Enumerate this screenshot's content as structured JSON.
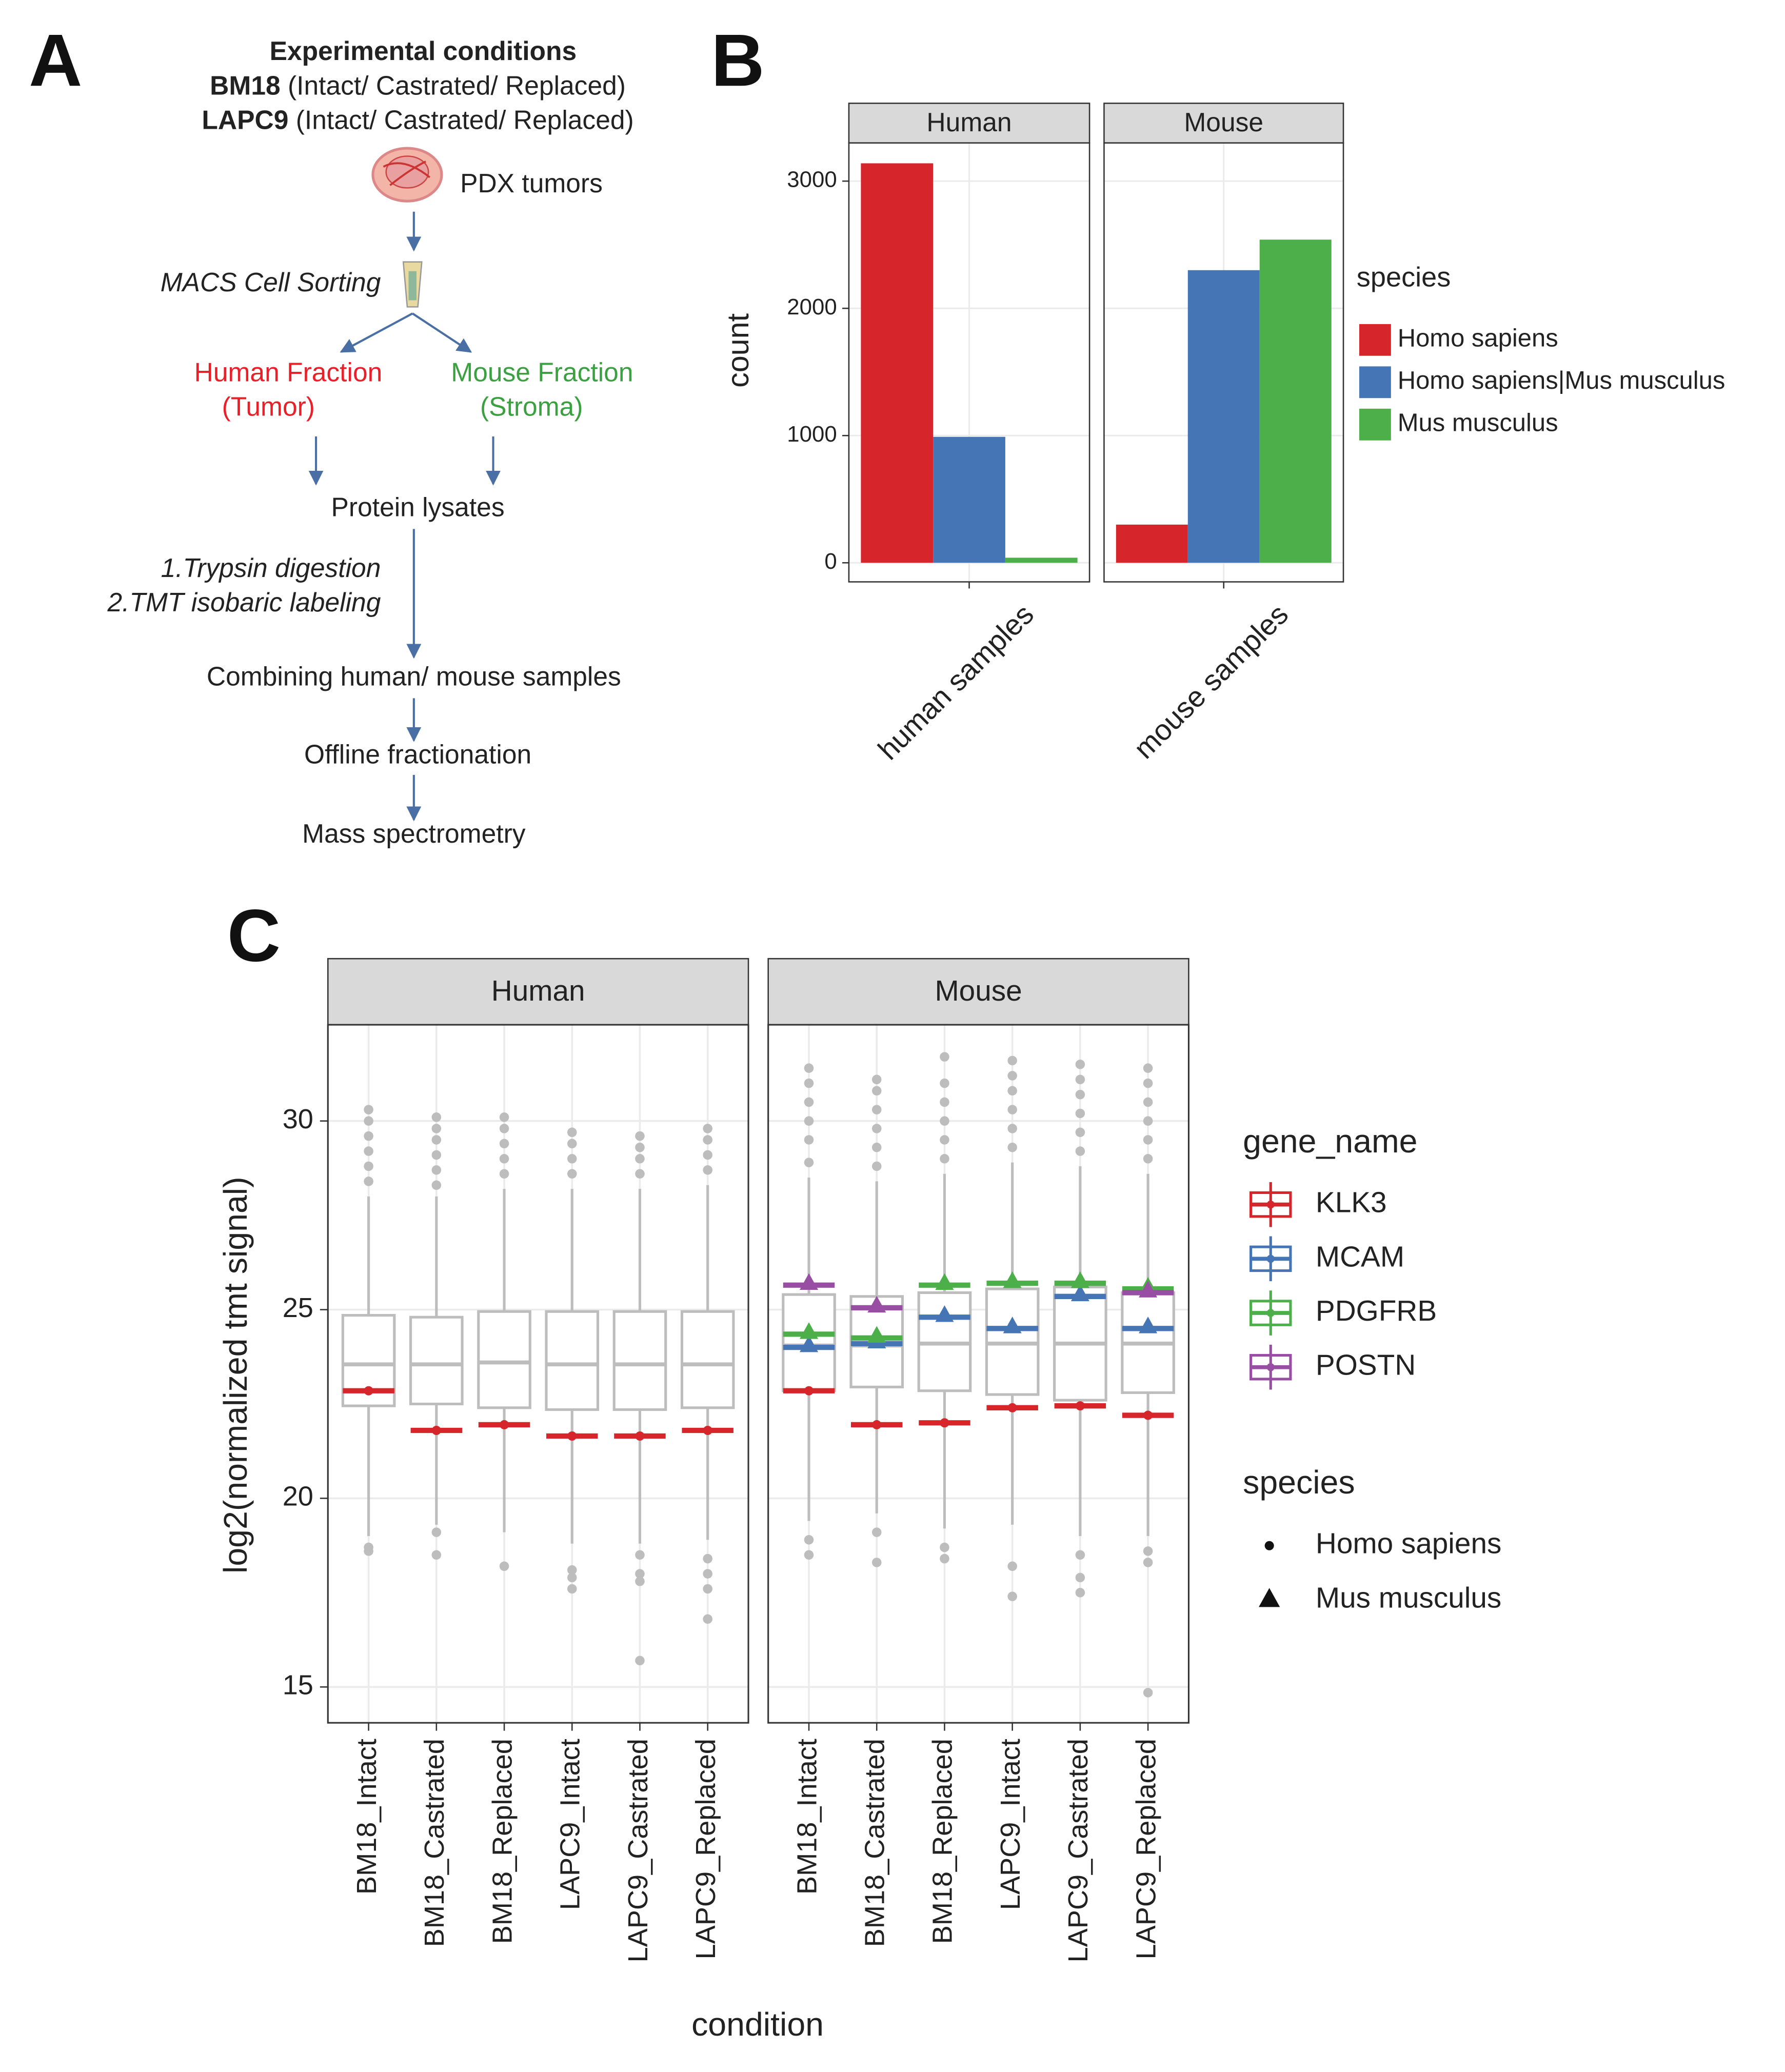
{
  "panel_labels": [
    "A",
    "B",
    "C"
  ],
  "diagram": {
    "title": "Experimental conditions",
    "conditions": [
      {
        "model": "BM18",
        "states": "(Intact/ Castrated/ Replaced)"
      },
      {
        "model": "LAPC9",
        "states": "(Intact/ Castrated/ Replaced)"
      }
    ],
    "source": "PDX tumors",
    "sorting": "MACS Cell Sorting",
    "human_fraction": [
      "Human Fraction",
      "(Tumor)"
    ],
    "mouse_fraction": [
      "Mouse Fraction",
      "(Stroma)"
    ],
    "lysates": "Protein lysates",
    "processing": [
      "1.Trypsin digestion",
      "2.TMT isobaric labeling"
    ],
    "combining": "Combining human/ mouse samples",
    "fractionation": "Offline fractionation",
    "measurement": "Mass spectrometry"
  },
  "chart_data": [
    {
      "type": "bar",
      "facets": [
        "Human",
        "Mouse"
      ],
      "categories": [
        "human samples",
        "mouse samples"
      ],
      "ylabel": "count",
      "legend_title": "species",
      "series": [
        {
          "name": "Homo sapiens",
          "color": "#d7262b",
          "values": [
            3140,
            300
          ]
        },
        {
          "name": "Homo sapiens|Mus musculus",
          "color": "#4575b4",
          "values": [
            990,
            2300
          ]
        },
        {
          "name": "Mus musculus",
          "color": "#4daf4a",
          "values": [
            40,
            2540
          ]
        }
      ],
      "ylim": [
        -150,
        3300
      ],
      "yticks": [
        0,
        1000,
        2000,
        3000
      ],
      "grid": true
    },
    {
      "type": "box",
      "facets": [
        "Human",
        "Mouse"
      ],
      "categories": [
        "BM18_Intact",
        "BM18_Castrated",
        "BM18_Replaced",
        "LAPC9_Intact",
        "LAPC9_Castrated",
        "LAPC9_Replaced"
      ],
      "xlabel": "condition",
      "ylabel": "log2(normalized tmt signal)",
      "box_color": "#bdbdbd",
      "boxes": [
        [
          {
            "q1": 22.45,
            "median": 23.55,
            "q3": 24.85,
            "low": 19.0,
            "high": 28.0,
            "outliers": [
              28.4,
              28.8,
              29.2,
              29.6,
              30.0,
              30.3,
              18.7,
              18.6
            ]
          },
          {
            "q1": 22.5,
            "median": 23.55,
            "q3": 24.8,
            "low": 19.3,
            "high": 28.0,
            "outliers": [
              28.3,
              28.7,
              29.1,
              29.5,
              29.8,
              30.1,
              19.1,
              18.5
            ]
          },
          {
            "q1": 22.4,
            "median": 23.6,
            "q3": 24.95,
            "low": 19.1,
            "high": 28.2,
            "outliers": [
              28.6,
              29.0,
              29.4,
              29.8,
              30.1,
              18.2
            ]
          },
          {
            "q1": 22.35,
            "median": 23.55,
            "q3": 24.95,
            "low": 18.8,
            "high": 28.2,
            "outliers": [
              28.6,
              29.0,
              29.4,
              29.7,
              18.1,
              17.9,
              17.6
            ]
          },
          {
            "q1": 22.35,
            "median": 23.55,
            "q3": 24.95,
            "low": 18.8,
            "high": 28.2,
            "outliers": [
              28.6,
              29.0,
              29.3,
              29.6,
              18.5,
              18.0,
              17.8,
              15.7
            ]
          },
          {
            "q1": 22.4,
            "median": 23.55,
            "q3": 24.95,
            "low": 18.9,
            "high": 28.3,
            "outliers": [
              28.7,
              29.1,
              29.5,
              29.8,
              18.4,
              18.0,
              17.6,
              16.8
            ]
          }
        ],
        [
          {
            "q1": 22.85,
            "median": 24.05,
            "q3": 25.4,
            "low": 19.4,
            "high": 28.5,
            "outliers": [
              28.9,
              29.5,
              30.0,
              30.5,
              31.0,
              31.4,
              18.9,
              18.5
            ]
          },
          {
            "q1": 22.95,
            "median": 24.05,
            "q3": 25.35,
            "low": 19.6,
            "high": 28.4,
            "outliers": [
              28.8,
              29.3,
              29.8,
              30.3,
              30.8,
              31.1,
              19.1,
              18.3
            ]
          },
          {
            "q1": 22.85,
            "median": 24.1,
            "q3": 25.45,
            "low": 19.2,
            "high": 28.6,
            "outliers": [
              29.0,
              29.5,
              30.0,
              30.5,
              31.0,
              31.7,
              18.7,
              18.4
            ]
          },
          {
            "q1": 22.75,
            "median": 24.1,
            "q3": 25.55,
            "low": 19.3,
            "high": 28.9,
            "outliers": [
              29.3,
              29.8,
              30.3,
              30.8,
              31.2,
              31.6,
              18.2,
              17.4
            ]
          },
          {
            "q1": 22.6,
            "median": 24.1,
            "q3": 25.6,
            "low": 19.0,
            "high": 28.8,
            "outliers": [
              29.2,
              29.7,
              30.2,
              30.7,
              31.1,
              31.5,
              18.5,
              17.9,
              17.5
            ]
          },
          {
            "q1": 22.8,
            "median": 24.1,
            "q3": 25.45,
            "low": 19.0,
            "high": 28.6,
            "outliers": [
              29.0,
              29.5,
              30.0,
              30.5,
              31.0,
              31.4,
              18.6,
              18.3,
              14.85
            ]
          }
        ]
      ],
      "legend_title": "gene_name",
      "shape_title": "species",
      "shapes": [
        "Homo sapiens",
        "Mus musculus"
      ],
      "series": [
        {
          "name": "KLK3",
          "color": "#d7262b",
          "shape": 0,
          "values": [
            [
              22.85,
              21.8,
              21.95,
              21.65,
              21.65,
              21.8
            ],
            [
              22.85,
              21.95,
              22.0,
              22.4,
              22.45,
              22.2
            ]
          ]
        },
        {
          "name": "MCAM",
          "color": "#4575b4",
          "shape": 1,
          "values": [
            [
              null,
              null,
              null,
              null,
              null,
              null
            ],
            [
              24.0,
              24.1,
              24.8,
              24.5,
              25.35,
              24.5
            ]
          ]
        },
        {
          "name": "PDGFRB",
          "color": "#4daf4a",
          "shape": 1,
          "values": [
            [
              null,
              null,
              null,
              null,
              null,
              null
            ],
            [
              24.35,
              24.25,
              25.65,
              25.7,
              25.7,
              25.55
            ]
          ]
        },
        {
          "name": "POSTN",
          "color": "#984ea3",
          "shape": 1,
          "values": [
            [
              null,
              null,
              null,
              null,
              null,
              null
            ],
            [
              25.65,
              25.05,
              null,
              null,
              null,
              25.45
            ]
          ]
        }
      ],
      "ylim": [
        14.05,
        32.55
      ],
      "yticks": [
        15,
        20,
        25,
        30
      ],
      "grid": true
    }
  ]
}
